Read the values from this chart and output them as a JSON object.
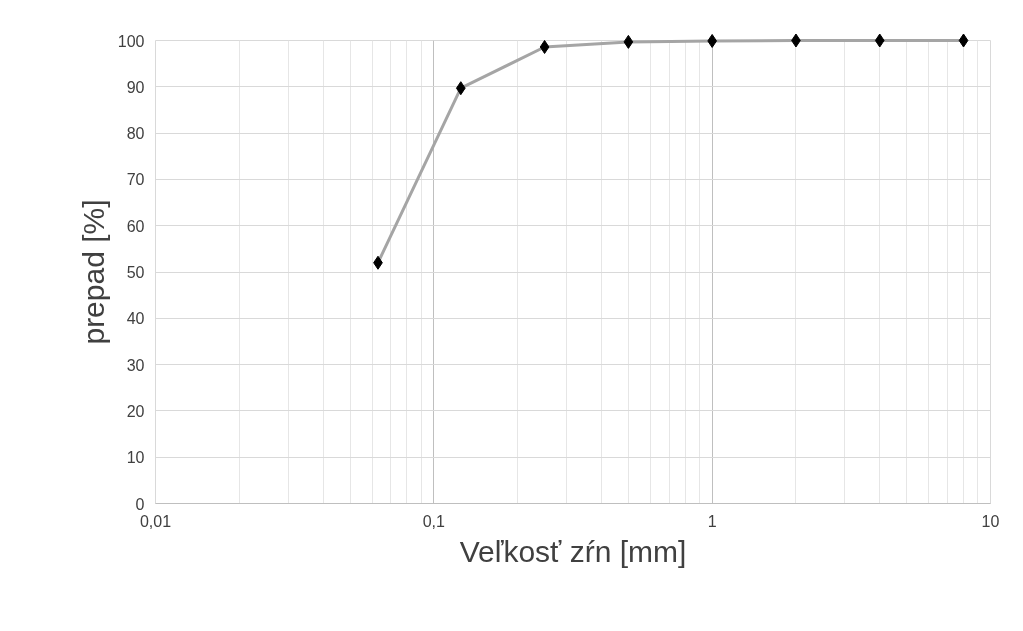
{
  "chart_data": {
    "type": "line",
    "xlabel": "Veľkosť zŕn [mm]",
    "ylabel": "prepad [%]",
    "x": [
      0.063,
      0.125,
      0.25,
      0.5,
      1,
      2,
      4,
      8
    ],
    "series": [
      {
        "color": "#a5a5a5",
        "values": [
          52,
          89.7,
          98.6,
          99.7,
          99.9,
          100,
          100,
          100
        ]
      }
    ],
    "xlim": [
      0.01,
      10
    ],
    "ylim": [
      0,
      100
    ],
    "xticks": [
      {
        "value": 0.01,
        "label": "0,01"
      },
      {
        "value": 0.1,
        "label": "0,1"
      },
      1,
      10
    ],
    "yticks": [
      0,
      10,
      20,
      30,
      40,
      50,
      60,
      70,
      80,
      90,
      100
    ],
    "log": "x",
    "grid": true,
    "marker": "diamond",
    "line_style": "solid"
  }
}
